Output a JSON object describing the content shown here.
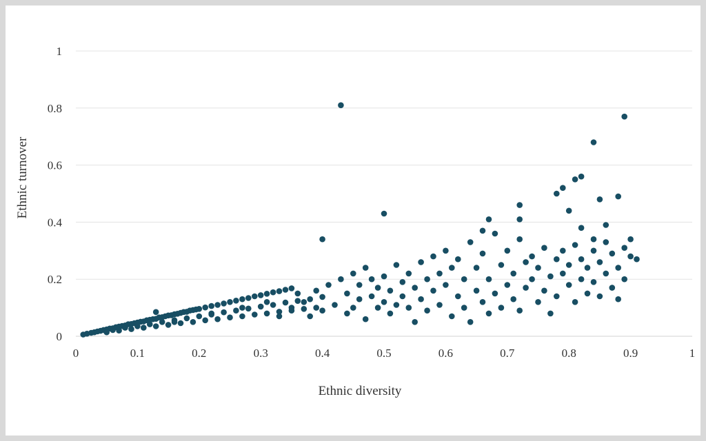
{
  "chart_data": {
    "type": "scatter",
    "title": "",
    "xlabel": "Ethnic diversity",
    "ylabel": "Ethnic turnover",
    "xlim": [
      0,
      1
    ],
    "ylim": [
      0,
      1
    ],
    "x_ticks": [
      0,
      0.1,
      0.2,
      0.3,
      0.4,
      0.5,
      0.6,
      0.7,
      0.8,
      0.9,
      1
    ],
    "y_ticks": [
      0,
      0.2,
      0.4,
      0.6,
      0.8,
      1
    ],
    "x_tick_labels": [
      "0",
      "0.1",
      "0.2",
      "0.3",
      "0.4",
      "0.5",
      "0.6",
      "0.7",
      "0.8",
      "0.9",
      "1"
    ],
    "y_tick_labels": [
      "0",
      "0.2",
      "0.4",
      "0.6",
      "0.8",
      "1"
    ],
    "grid": "horizontal",
    "legend": "none",
    "marker_color": "#184e63",
    "series": [
      {
        "points": [
          [
            0.012,
            0.006
          ],
          [
            0.018,
            0.009
          ],
          [
            0.025,
            0.012
          ],
          [
            0.03,
            0.014
          ],
          [
            0.035,
            0.017
          ],
          [
            0.04,
            0.019
          ],
          [
            0.045,
            0.022
          ],
          [
            0.05,
            0.024
          ],
          [
            0.055,
            0.027
          ],
          [
            0.06,
            0.028
          ],
          [
            0.065,
            0.032
          ],
          [
            0.07,
            0.034
          ],
          [
            0.075,
            0.036
          ],
          [
            0.08,
            0.038
          ],
          [
            0.085,
            0.042
          ],
          [
            0.09,
            0.043
          ],
          [
            0.095,
            0.046
          ],
          [
            0.1,
            0.048
          ],
          [
            0.105,
            0.051
          ],
          [
            0.11,
            0.052
          ],
          [
            0.115,
            0.056
          ],
          [
            0.12,
            0.058
          ],
          [
            0.125,
            0.06
          ],
          [
            0.13,
            0.061
          ],
          [
            0.135,
            0.066
          ],
          [
            0.14,
            0.067
          ],
          [
            0.145,
            0.07
          ],
          [
            0.15,
            0.073
          ],
          [
            0.155,
            0.074
          ],
          [
            0.16,
            0.077
          ],
          [
            0.165,
            0.079
          ],
          [
            0.17,
            0.082
          ],
          [
            0.175,
            0.085
          ],
          [
            0.18,
            0.086
          ],
          [
            0.185,
            0.09
          ],
          [
            0.19,
            0.092
          ],
          [
            0.195,
            0.094
          ],
          [
            0.2,
            0.096
          ],
          [
            0.21,
            0.101
          ],
          [
            0.22,
            0.106
          ],
          [
            0.23,
            0.11
          ],
          [
            0.24,
            0.115
          ],
          [
            0.25,
            0.12
          ],
          [
            0.26,
            0.125
          ],
          [
            0.27,
            0.13
          ],
          [
            0.28,
            0.134
          ],
          [
            0.29,
            0.14
          ],
          [
            0.3,
            0.144
          ],
          [
            0.31,
            0.149
          ],
          [
            0.32,
            0.154
          ],
          [
            0.33,
            0.158
          ],
          [
            0.34,
            0.163
          ],
          [
            0.35,
            0.168
          ],
          [
            0.05,
            0.014
          ],
          [
            0.07,
            0.02
          ],
          [
            0.09,
            0.025
          ],
          [
            0.11,
            0.03
          ],
          [
            0.13,
            0.035
          ],
          [
            0.15,
            0.04
          ],
          [
            0.17,
            0.046
          ],
          [
            0.19,
            0.05
          ],
          [
            0.21,
            0.056
          ],
          [
            0.23,
            0.06
          ],
          [
            0.25,
            0.066
          ],
          [
            0.27,
            0.07
          ],
          [
            0.29,
            0.076
          ],
          [
            0.31,
            0.08
          ],
          [
            0.33,
            0.086
          ],
          [
            0.35,
            0.09
          ],
          [
            0.37,
            0.096
          ],
          [
            0.39,
            0.1
          ],
          [
            0.06,
            0.022
          ],
          [
            0.08,
            0.03
          ],
          [
            0.1,
            0.035
          ],
          [
            0.12,
            0.042
          ],
          [
            0.14,
            0.05
          ],
          [
            0.16,
            0.056
          ],
          [
            0.18,
            0.063
          ],
          [
            0.2,
            0.07
          ],
          [
            0.22,
            0.076
          ],
          [
            0.24,
            0.084
          ],
          [
            0.26,
            0.09
          ],
          [
            0.28,
            0.097
          ],
          [
            0.3,
            0.104
          ],
          [
            0.32,
            0.11
          ],
          [
            0.34,
            0.118
          ],
          [
            0.36,
            0.124
          ],
          [
            0.38,
            0.13
          ],
          [
            0.4,
            0.138
          ],
          [
            0.13,
            0.085
          ],
          [
            0.16,
            0.05
          ],
          [
            0.22,
            0.08
          ],
          [
            0.27,
            0.1
          ],
          [
            0.31,
            0.12
          ],
          [
            0.33,
            0.07
          ],
          [
            0.35,
            0.1
          ],
          [
            0.36,
            0.15
          ],
          [
            0.37,
            0.12
          ],
          [
            0.38,
            0.07
          ],
          [
            0.39,
            0.16
          ],
          [
            0.4,
            0.09
          ],
          [
            0.41,
            0.18
          ],
          [
            0.42,
            0.11
          ],
          [
            0.43,
            0.2
          ],
          [
            0.44,
            0.08
          ],
          [
            0.44,
            0.15
          ],
          [
            0.45,
            0.22
          ],
          [
            0.45,
            0.1
          ],
          [
            0.46,
            0.13
          ],
          [
            0.46,
            0.18
          ],
          [
            0.47,
            0.06
          ],
          [
            0.47,
            0.24
          ],
          [
            0.48,
            0.14
          ],
          [
            0.48,
            0.2
          ],
          [
            0.49,
            0.1
          ],
          [
            0.49,
            0.17
          ],
          [
            0.5,
            0.12
          ],
          [
            0.5,
            0.21
          ],
          [
            0.51,
            0.08
          ],
          [
            0.51,
            0.16
          ],
          [
            0.52,
            0.25
          ],
          [
            0.52,
            0.11
          ],
          [
            0.53,
            0.19
          ],
          [
            0.53,
            0.14
          ],
          [
            0.54,
            0.22
          ],
          [
            0.54,
            0.1
          ],
          [
            0.55,
            0.17
          ],
          [
            0.55,
            0.05
          ],
          [
            0.56,
            0.26
          ],
          [
            0.56,
            0.13
          ],
          [
            0.57,
            0.2
          ],
          [
            0.57,
            0.09
          ],
          [
            0.58,
            0.28
          ],
          [
            0.58,
            0.16
          ],
          [
            0.59,
            0.22
          ],
          [
            0.59,
            0.11
          ],
          [
            0.6,
            0.3
          ],
          [
            0.6,
            0.18
          ],
          [
            0.61,
            0.07
          ],
          [
            0.61,
            0.24
          ],
          [
            0.62,
            0.14
          ],
          [
            0.62,
            0.27
          ],
          [
            0.63,
            0.1
          ],
          [
            0.63,
            0.2
          ],
          [
            0.64,
            0.05
          ],
          [
            0.64,
            0.33
          ],
          [
            0.65,
            0.16
          ],
          [
            0.65,
            0.24
          ],
          [
            0.66,
            0.12
          ],
          [
            0.66,
            0.29
          ],
          [
            0.67,
            0.2
          ],
          [
            0.67,
            0.08
          ],
          [
            0.68,
            0.36
          ],
          [
            0.68,
            0.15
          ],
          [
            0.69,
            0.25
          ],
          [
            0.69,
            0.1
          ],
          [
            0.7,
            0.3
          ],
          [
            0.7,
            0.18
          ],
          [
            0.71,
            0.22
          ],
          [
            0.71,
            0.13
          ],
          [
            0.72,
            0.34
          ],
          [
            0.72,
            0.09
          ],
          [
            0.73,
            0.26
          ],
          [
            0.73,
            0.17
          ],
          [
            0.74,
            0.2
          ],
          [
            0.74,
            0.28
          ],
          [
            0.75,
            0.12
          ],
          [
            0.75,
            0.24
          ],
          [
            0.76,
            0.16
          ],
          [
            0.76,
            0.31
          ],
          [
            0.77,
            0.08
          ],
          [
            0.77,
            0.21
          ],
          [
            0.78,
            0.27
          ],
          [
            0.78,
            0.14
          ],
          [
            0.79,
            0.22
          ],
          [
            0.79,
            0.3
          ],
          [
            0.8,
            0.18
          ],
          [
            0.8,
            0.25
          ],
          [
            0.81,
            0.12
          ],
          [
            0.81,
            0.32
          ],
          [
            0.82,
            0.2
          ],
          [
            0.82,
            0.27
          ],
          [
            0.83,
            0.15
          ],
          [
            0.83,
            0.24
          ],
          [
            0.84,
            0.3
          ],
          [
            0.84,
            0.19
          ],
          [
            0.85,
            0.14
          ],
          [
            0.85,
            0.26
          ],
          [
            0.86,
            0.22
          ],
          [
            0.86,
            0.33
          ],
          [
            0.87,
            0.17
          ],
          [
            0.87,
            0.29
          ],
          [
            0.88,
            0.24
          ],
          [
            0.88,
            0.13
          ],
          [
            0.89,
            0.31
          ],
          [
            0.89,
            0.2
          ],
          [
            0.9,
            0.28
          ],
          [
            0.9,
            0.34
          ],
          [
            0.91,
            0.27
          ],
          [
            0.4,
            0.34
          ],
          [
            0.43,
            0.81
          ],
          [
            0.5,
            0.43
          ],
          [
            0.66,
            0.37
          ],
          [
            0.67,
            0.41
          ],
          [
            0.72,
            0.46
          ],
          [
            0.72,
            0.41
          ],
          [
            0.78,
            0.5
          ],
          [
            0.79,
            0.52
          ],
          [
            0.8,
            0.44
          ],
          [
            0.81,
            0.55
          ],
          [
            0.82,
            0.56
          ],
          [
            0.82,
            0.38
          ],
          [
            0.84,
            0.34
          ],
          [
            0.84,
            0.68
          ],
          [
            0.85,
            0.48
          ],
          [
            0.86,
            0.39
          ],
          [
            0.88,
            0.49
          ],
          [
            0.89,
            0.77
          ]
        ]
      }
    ]
  }
}
